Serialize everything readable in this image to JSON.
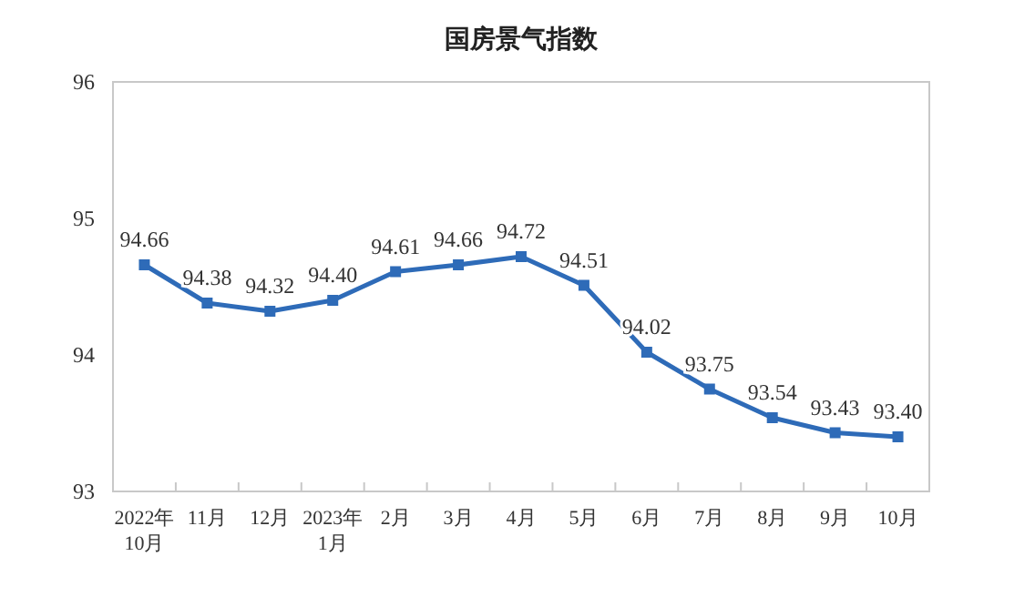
{
  "chart_data": {
    "type": "line",
    "title": "国房景气指数",
    "categories": [
      "2022年\n10月",
      "11月",
      "12月",
      "2023年\n1月",
      "2月",
      "3月",
      "4月",
      "5月",
      "6月",
      "7月",
      "8月",
      "9月",
      "10月"
    ],
    "series": [
      {
        "color": "#2e6bb8",
        "values": [
          94.66,
          94.38,
          94.32,
          94.4,
          94.61,
          94.66,
          94.72,
          94.51,
          94.02,
          93.75,
          93.54,
          93.43,
          93.4
        ],
        "value_labels": [
          "94.66",
          "94.38",
          "94.32",
          "94.40",
          "94.61",
          "94.66",
          "94.72",
          "94.51",
          "94.02",
          "93.75",
          "93.54",
          "93.43",
          "93.40"
        ]
      }
    ],
    "ylim": [
      93,
      96
    ],
    "yticks": [
      93,
      94,
      95,
      96
    ],
    "marker": "square",
    "line_style": "solid",
    "grid": false
  }
}
